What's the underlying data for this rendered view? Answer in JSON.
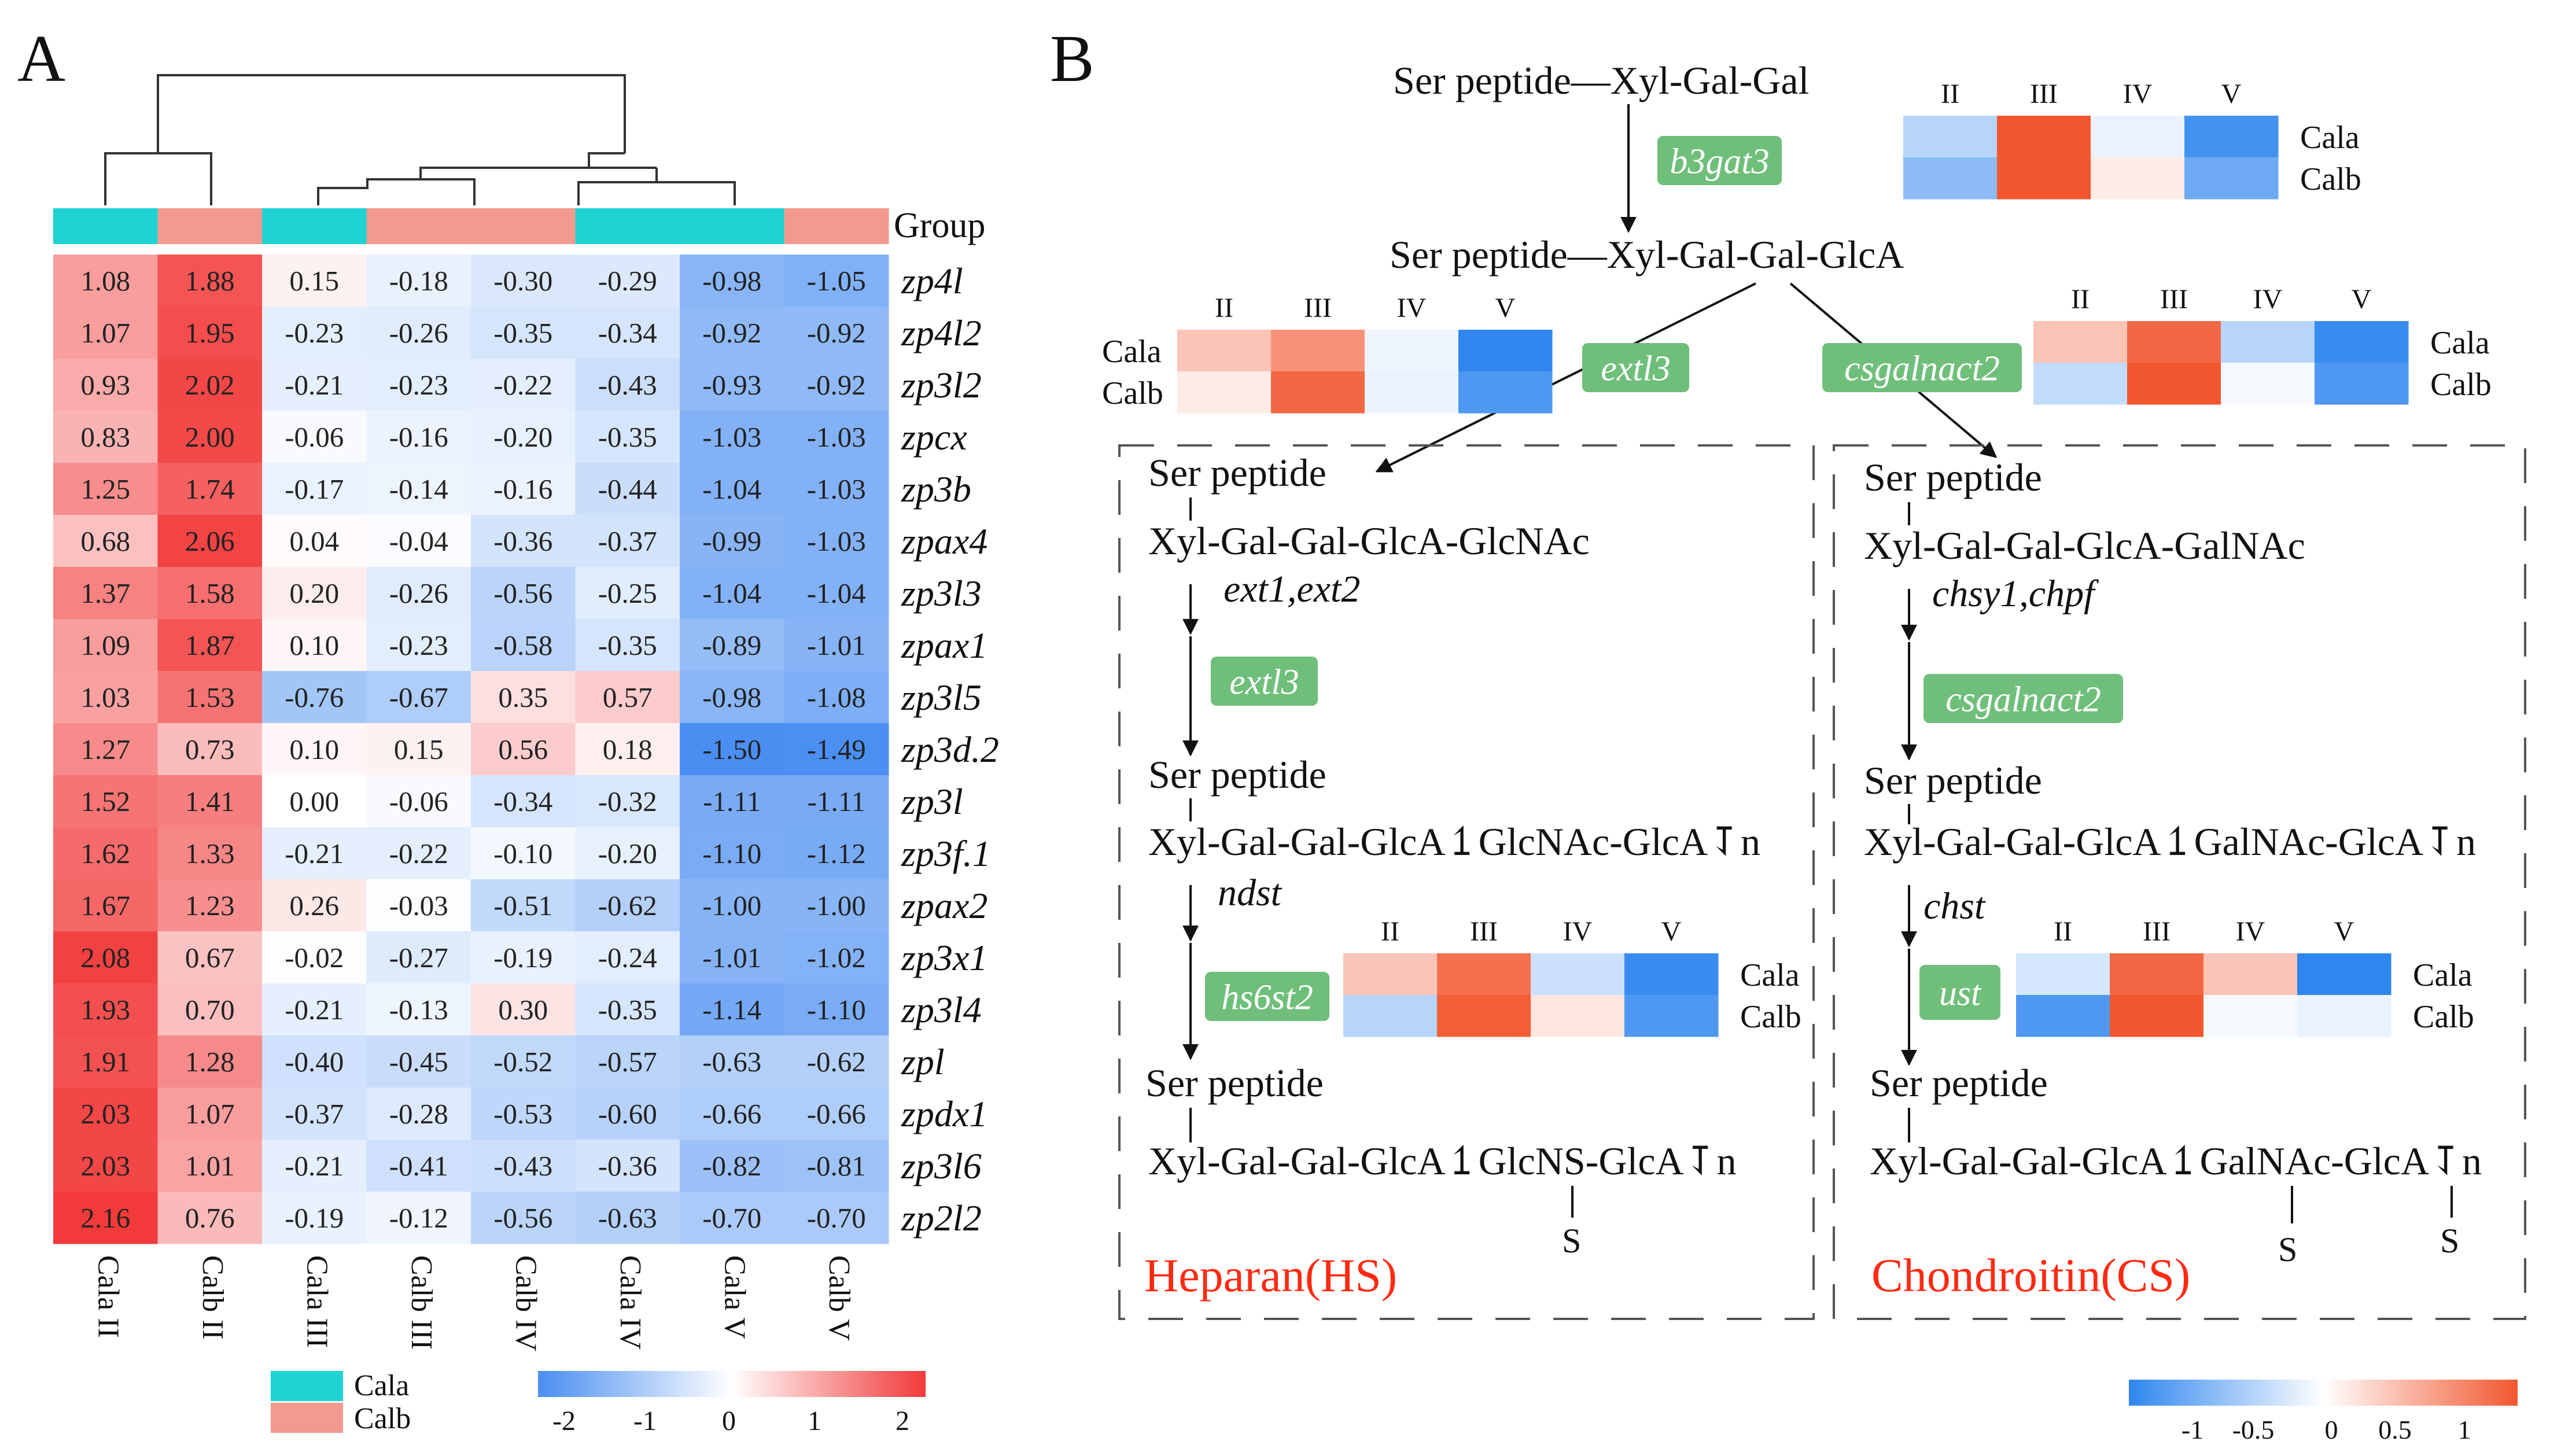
{
  "panel_labels": {
    "a": "A",
    "b": "B"
  },
  "panel_a": {
    "group_label": "Group",
    "group_colors": {
      "Cala": "#1fd3d3",
      "Calb": "#f39a8f"
    },
    "legend_groups": [
      "Cala",
      "Calb"
    ],
    "scale_ticks": [
      "-2",
      "-1",
      "0",
      "1",
      "2"
    ],
    "columns": [
      {
        "label": "Cala II",
        "group": "Cala"
      },
      {
        "label": "Calb II",
        "group": "Calb"
      },
      {
        "label": "Cala III",
        "group": "Cala"
      },
      {
        "label": "Calb III",
        "group": "Calb"
      },
      {
        "label": "Calb IV",
        "group": "Calb"
      },
      {
        "label": "Cala IV",
        "group": "Cala"
      },
      {
        "label": "Cala V",
        "group": "Cala"
      },
      {
        "label": "Calb V",
        "group": "Calb"
      }
    ],
    "rows": [
      {
        "gene": "zp4l",
        "values": [
          "1.08",
          "1.88",
          "0.15",
          "-0.18",
          "-0.30",
          "-0.29",
          "-0.98",
          "-1.05"
        ]
      },
      {
        "gene": "zp4l2",
        "values": [
          "1.07",
          "1.95",
          "-0.23",
          "-0.26",
          "-0.35",
          "-0.34",
          "-0.92",
          "-0.92"
        ]
      },
      {
        "gene": "zp3l2",
        "values": [
          "0.93",
          "2.02",
          "-0.21",
          "-0.23",
          "-0.22",
          "-0.43",
          "-0.93",
          "-0.92"
        ]
      },
      {
        "gene": "zpcx",
        "values": [
          "0.83",
          "2.00",
          "-0.06",
          "-0.16",
          "-0.20",
          "-0.35",
          "-1.03",
          "-1.03"
        ]
      },
      {
        "gene": "zp3b",
        "values": [
          "1.25",
          "1.74",
          "-0.17",
          "-0.14",
          "-0.16",
          "-0.44",
          "-1.04",
          "-1.03"
        ]
      },
      {
        "gene": "zpax4",
        "values": [
          "0.68",
          "2.06",
          "0.04",
          "-0.04",
          "-0.36",
          "-0.37",
          "-0.99",
          "-1.03"
        ]
      },
      {
        "gene": "zp3l3",
        "values": [
          "1.37",
          "1.58",
          "0.20",
          "-0.26",
          "-0.56",
          "-0.25",
          "-1.04",
          "-1.04"
        ]
      },
      {
        "gene": "zpax1",
        "values": [
          "1.09",
          "1.87",
          "0.10",
          "-0.23",
          "-0.58",
          "-0.35",
          "-0.89",
          "-1.01"
        ]
      },
      {
        "gene": "zp3l5",
        "values": [
          "1.03",
          "1.53",
          "-0.76",
          "-0.67",
          "0.35",
          "0.57",
          "-0.98",
          "-1.08"
        ]
      },
      {
        "gene": "zp3d.2",
        "values": [
          "1.27",
          "0.73",
          "0.10",
          "0.15",
          "0.56",
          "0.18",
          "-1.50",
          "-1.49"
        ]
      },
      {
        "gene": "zp3l",
        "values": [
          "1.52",
          "1.41",
          "0.00",
          "-0.06",
          "-0.34",
          "-0.32",
          "-1.11",
          "-1.11"
        ]
      },
      {
        "gene": "zp3f.1",
        "values": [
          "1.62",
          "1.33",
          "-0.21",
          "-0.22",
          "-0.10",
          "-0.20",
          "-1.10",
          "-1.12"
        ]
      },
      {
        "gene": "zpax2",
        "values": [
          "1.67",
          "1.23",
          "0.26",
          "-0.03",
          "-0.51",
          "-0.62",
          "-1.00",
          "-1.00"
        ]
      },
      {
        "gene": "zp3x1",
        "values": [
          "2.08",
          "0.67",
          "-0.02",
          "-0.27",
          "-0.19",
          "-0.24",
          "-1.01",
          "-1.02"
        ]
      },
      {
        "gene": "zp3l4",
        "values": [
          "1.93",
          "0.70",
          "-0.21",
          "-0.13",
          "0.30",
          "-0.35",
          "-1.14",
          "-1.10"
        ]
      },
      {
        "gene": "zpl",
        "values": [
          "1.91",
          "1.28",
          "-0.40",
          "-0.45",
          "-0.52",
          "-0.57",
          "-0.63",
          "-0.62"
        ]
      },
      {
        "gene": "zpdx1",
        "values": [
          "2.03",
          "1.07",
          "-0.37",
          "-0.28",
          "-0.53",
          "-0.60",
          "-0.66",
          "-0.66"
        ]
      },
      {
        "gene": "zp3l6",
        "values": [
          "2.03",
          "1.01",
          "-0.21",
          "-0.41",
          "-0.43",
          "-0.36",
          "-0.82",
          "-0.81"
        ]
      },
      {
        "gene": "zp2l2",
        "values": [
          "2.16",
          "0.76",
          "-0.19",
          "-0.12",
          "-0.56",
          "-0.63",
          "-0.70",
          "-0.70"
        ]
      }
    ]
  },
  "panel_b": {
    "mini_heatmap_stages": [
      "II",
      "III",
      "IV",
      "V"
    ],
    "mini_heatmap_rows": [
      "Cala",
      "Calb"
    ],
    "mini_heatmaps": [
      {
        "gene": "b3gat3",
        "values": [
          [
            -0.35,
            1.0,
            -0.1,
            -0.9
          ],
          [
            -0.55,
            1.0,
            0.12,
            -0.7
          ]
        ]
      },
      {
        "gene": "extl3",
        "values": [
          [
            0.35,
            0.65,
            -0.08,
            -1.0
          ],
          [
            0.12,
            0.9,
            -0.1,
            -0.85
          ]
        ]
      },
      {
        "gene": "csgalnact2",
        "values": [
          [
            0.35,
            0.9,
            -0.35,
            -0.95
          ],
          [
            -0.3,
            1.0,
            -0.05,
            -0.85
          ]
        ]
      },
      {
        "gene": "hs6st2",
        "values": [
          [
            0.35,
            0.85,
            -0.25,
            -0.95
          ],
          [
            -0.35,
            0.95,
            0.15,
            -0.85
          ]
        ]
      },
      {
        "gene": "ust",
        "values": [
          [
            -0.2,
            0.9,
            0.35,
            -1.0
          ],
          [
            -0.85,
            1.0,
            -0.05,
            -0.1
          ]
        ]
      }
    ],
    "top_chain_1": "Ser peptide—Xyl-Gal-Gal",
    "top_chain_2": "Ser peptide—Xyl-Gal-Gal-GlcA",
    "gene_tag_csgalnact2_late": "csgalnact2",
    "hs": {
      "ser1": "Ser peptide",
      "chain1": "Xyl-Gal-Gal-GlcA-GlcNAc",
      "genes1": "ext1,ext2",
      "ser2": "Ser peptide",
      "chain2": "Xyl-Gal-Gal-GlcA⥠GlcNAc-GlcA⥡n",
      "genes2": "ndst",
      "ser3": "Ser peptide",
      "chain3": "Xyl-Gal-Gal-GlcA⥠GlcNS-GlcA⥡n",
      "sulfate": "S",
      "title": "Heparan(HS)"
    },
    "cs": {
      "ser1": "Ser peptide",
      "chain1": "Xyl-Gal-Gal-GlcA-GalNAc",
      "genes1": "chsy1,chpf",
      "ser2": "Ser peptide",
      "chain2": "Xyl-Gal-Gal-GlcA⥠GalNAc-GlcA⥡n",
      "genes2": "chst",
      "ser3": "Ser peptide",
      "chain3": "Xyl-Gal-Gal-GlcA⥠GalNAc-GlcA⥡n",
      "sulfate_1": "S",
      "sulfate_2": "S",
      "title": "Chondroitin(CS)"
    },
    "scale_ticks": [
      "-1",
      "-0.5",
      "0",
      "0.5",
      "1"
    ],
    "title_color": "#ff2a12",
    "tag_color": "#6fbf7a"
  }
}
